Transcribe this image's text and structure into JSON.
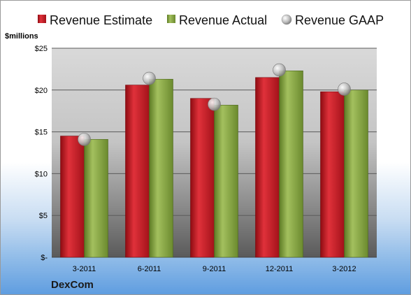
{
  "company": "DexCom",
  "colors": {
    "estimate": "#c0151c",
    "actual": "#7a9a3a",
    "gaap": "#b8b8b8"
  },
  "chart_data": {
    "type": "bar",
    "ylabel": "$millions",
    "ylim": [
      0,
      25
    ],
    "yticks": [
      0,
      5,
      10,
      15,
      20,
      25
    ],
    "ytick_labels": [
      "$-",
      "$5",
      "$10",
      "$15",
      "$20",
      "$25"
    ],
    "categories": [
      "3-2011",
      "6-2011",
      "9-2011",
      "12-2011",
      "3-2012"
    ],
    "series": [
      {
        "name": "Revenue Estimate",
        "type": "bar",
        "values": [
          14.5,
          20.6,
          19.0,
          21.5,
          19.8
        ]
      },
      {
        "name": "Revenue Actual",
        "type": "bar",
        "values": [
          14.1,
          21.3,
          18.2,
          22.3,
          20.0
        ]
      },
      {
        "name": "Revenue GAAP",
        "type": "scatter",
        "values": [
          14.1,
          21.4,
          18.3,
          22.4,
          20.1
        ]
      }
    ],
    "legend_position": "top",
    "grid": true
  }
}
